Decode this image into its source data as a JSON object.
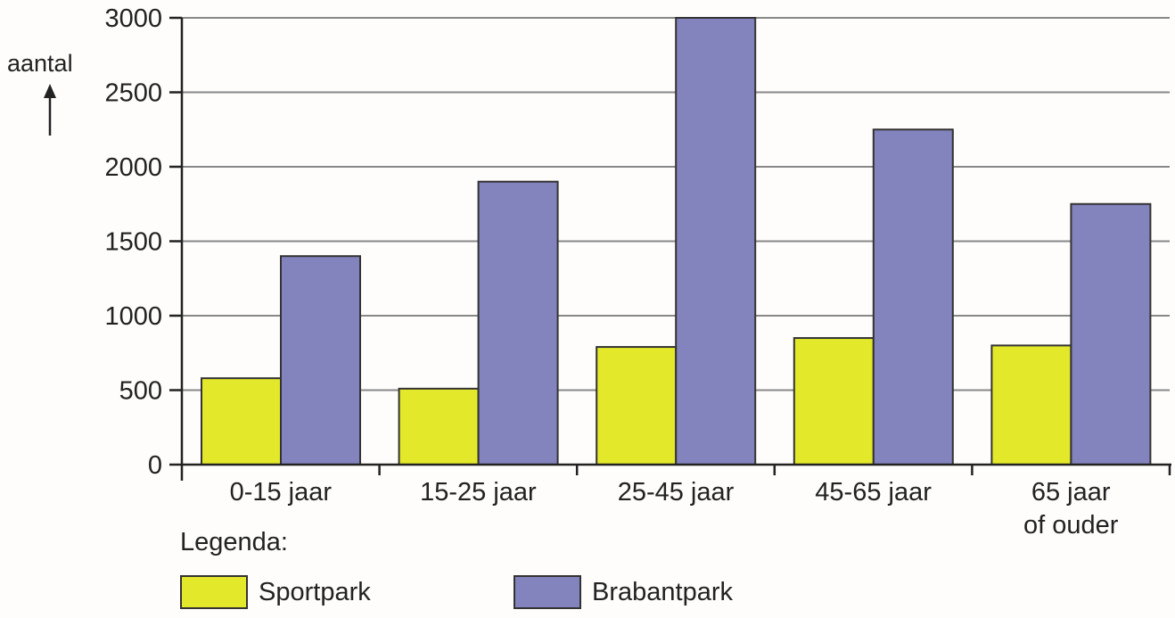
{
  "chart_data": {
    "type": "bar",
    "title": "",
    "xlabel": "",
    "ylabel": "aantal",
    "ylim": [
      0,
      3000
    ],
    "yticks": [
      0,
      500,
      1000,
      1500,
      2000,
      2500,
      3000
    ],
    "grid": true,
    "categories": [
      "0-15 jaar",
      "15-25 jaar",
      "25-45 jaar",
      "45-65 jaar",
      "65 jaar of ouder"
    ],
    "category_lines": [
      [
        "0-15 jaar"
      ],
      [
        "15-25 jaar"
      ],
      [
        "25-45 jaar"
      ],
      [
        "45-65 jaar"
      ],
      [
        "65 jaar",
        "of ouder"
      ]
    ],
    "series": [
      {
        "name": "Sportpark",
        "color": "#e3e82a",
        "values": [
          580,
          510,
          790,
          850,
          800
        ]
      },
      {
        "name": "Brabantpark",
        "color": "#8383bd",
        "values": [
          1400,
          1900,
          3000,
          2250,
          1750
        ]
      }
    ],
    "legend_position": "bottom-left"
  },
  "legend": {
    "title": "Legenda:",
    "items": [
      {
        "label": "Sportpark",
        "color": "#e3e82a"
      },
      {
        "label": "Brabantpark",
        "color": "#8383bd"
      }
    ]
  },
  "axis": {
    "ylabel": "aantal",
    "ytick_labels": [
      "0",
      "500",
      "1000",
      "1500",
      "2000",
      "2500",
      "3000"
    ]
  }
}
